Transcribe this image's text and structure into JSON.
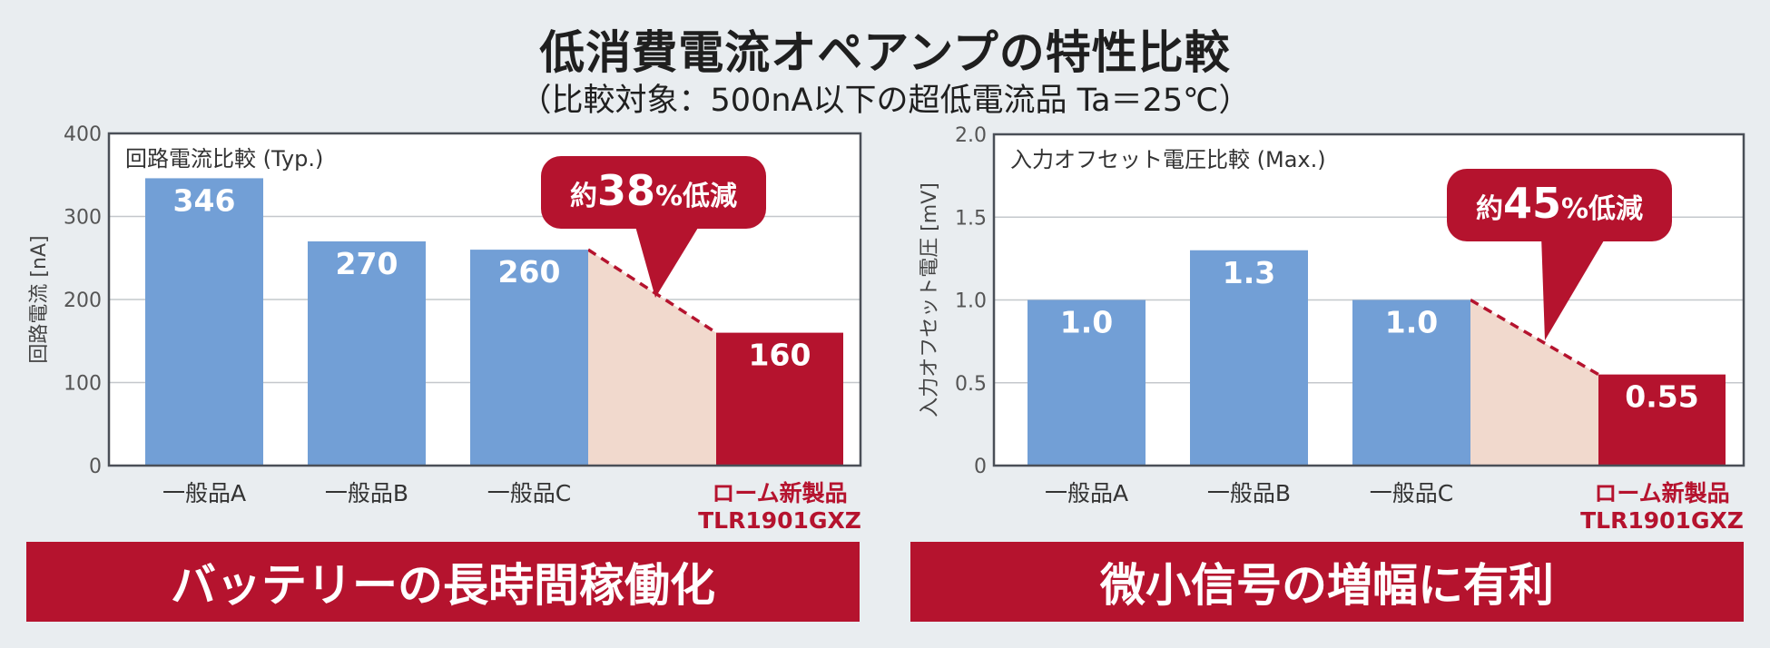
{
  "title": "低消費電流オペアンプの特性比較",
  "subtitle": "（比較対象：500nA以下の超低電流品 Ta＝25℃）",
  "colors": {
    "competitor": "#729fd6",
    "rohm": "#b5132e",
    "shade": "#f1d9cd",
    "axis": "#4a4f57",
    "grid": "#c4c8cc"
  },
  "chart_data": [
    {
      "type": "bar",
      "title": "回路電流比較 (Typ.)",
      "ylabel": "回路電流 [nA]",
      "ylim": [
        0,
        400
      ],
      "yticks": [
        "0",
        "100",
        "200",
        "300",
        "400"
      ],
      "categories": [
        "一般品A",
        "一般品B",
        "一般品C",
        "ローム新製品\nTLR1901GXZ"
      ],
      "values": [
        346,
        270,
        260,
        160
      ],
      "data_labels": [
        "346",
        "270",
        "260",
        "160"
      ],
      "highlight_index": 3,
      "callout": {
        "prefix": "約",
        "value": "38",
        "suffix": "%低減"
      },
      "banner": "バッテリーの長時間稼働化"
    },
    {
      "type": "bar",
      "title": "入力オフセット電圧比較 (Max.)",
      "ylabel": "入力オフセット電圧 [mV]",
      "ylim": [
        0,
        2.0
      ],
      "yticks": [
        "0",
        "0.5",
        "1.0",
        "1.5",
        "2.0"
      ],
      "categories": [
        "一般品A",
        "一般品B",
        "一般品C",
        "ローム新製品\nTLR1901GXZ"
      ],
      "values": [
        1.0,
        1.3,
        1.0,
        0.55
      ],
      "data_labels": [
        "1.0",
        "1.3",
        "1.0",
        "0.55"
      ],
      "highlight_index": 3,
      "callout": {
        "prefix": "約",
        "value": "45",
        "suffix": "%低減"
      },
      "banner": "微小信号の増幅に有利"
    }
  ]
}
